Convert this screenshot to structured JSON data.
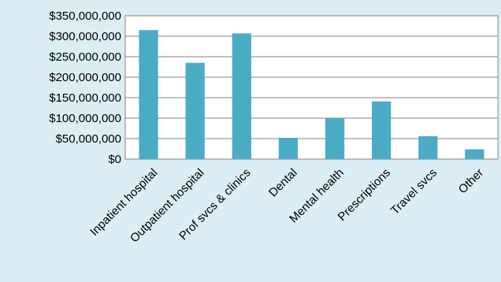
{
  "chart_data": {
    "type": "bar",
    "title": "",
    "xlabel": "",
    "ylabel": "",
    "categories": [
      "Inpatient hospital",
      "Outpatient hospital",
      "Prof svcs & clinics",
      "Dental",
      "Mental health",
      "Prescriptions",
      "Travel svcs",
      "Other"
    ],
    "values": [
      315000000,
      235000000,
      307000000,
      52000000,
      99000000,
      141000000,
      56000000,
      24000000
    ],
    "ylim": [
      0,
      350000000
    ],
    "yticks": [
      0,
      50000000,
      100000000,
      150000000,
      200000000,
      250000000,
      300000000,
      350000000
    ],
    "ytick_labels": [
      "$0",
      "$50,000,000",
      "$100,000,000",
      "$150,000,000",
      "$200,000,000",
      "$250,000,000",
      "$300,000,000",
      "$350,000,000"
    ],
    "grid": true,
    "legend": "none",
    "colors": {
      "bar": "#4bacc6",
      "plot_background": "#ffffff",
      "page_background": "#daeef3",
      "gridline": "#868686",
      "axis": "#868686"
    }
  }
}
